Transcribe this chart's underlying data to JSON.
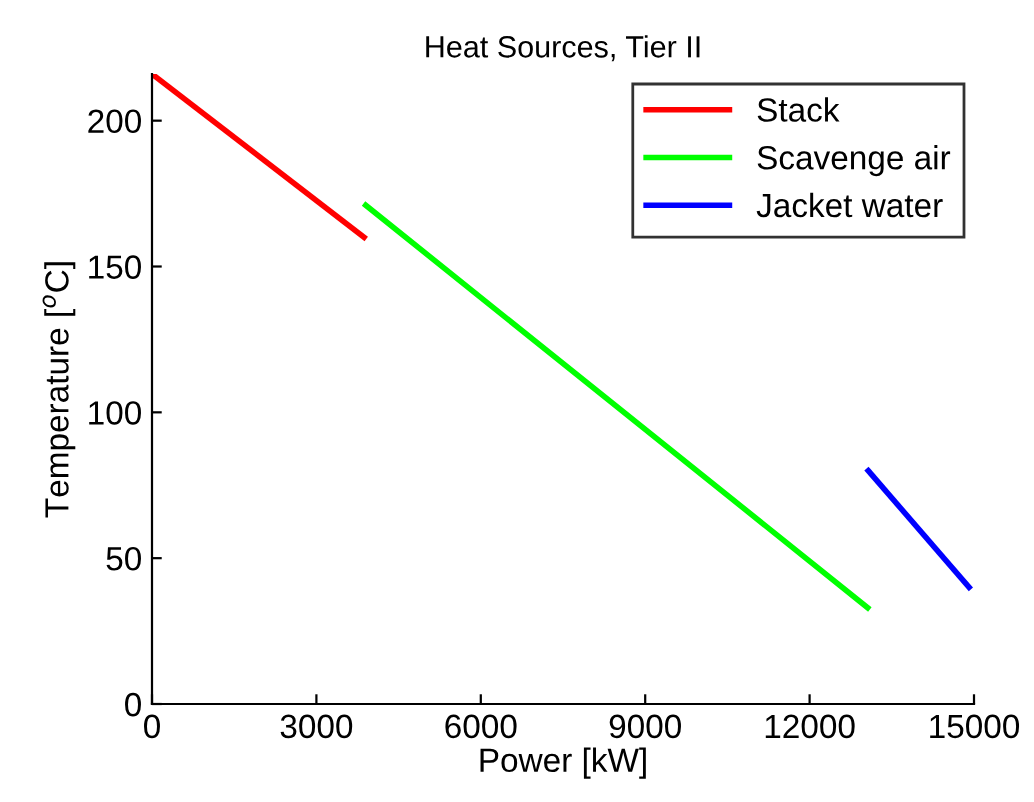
{
  "chart_data": {
    "type": "line",
    "title": "Heat Sources, Tier II",
    "xlabel": "Power [kW]",
    "ylabel": "Temperature [$^{o}$C]",
    "series": [
      {
        "name": "Stack",
        "color": "#ff0000",
        "x": [
          0,
          3870
        ],
        "values": [
          216,
          160
        ]
      },
      {
        "name": "Scavenge air",
        "color": "#00ff00",
        "x": [
          3900,
          13060
        ],
        "values": [
          171,
          33
        ]
      },
      {
        "name": "Jacket water",
        "color": "#0000ff",
        "x": [
          13070,
          14910
        ],
        "values": [
          80,
          40
        ]
      }
    ],
    "xlim": [
      0,
      15000
    ],
    "xticks": [
      0,
      3000,
      6000,
      9000,
      12000,
      15000
    ],
    "ylim": [
      0,
      216
    ],
    "yticks": [
      0,
      50,
      100,
      150,
      200
    ],
    "grid": false,
    "legend": "top right",
    "marker": "none",
    "line_style": "solid"
  }
}
